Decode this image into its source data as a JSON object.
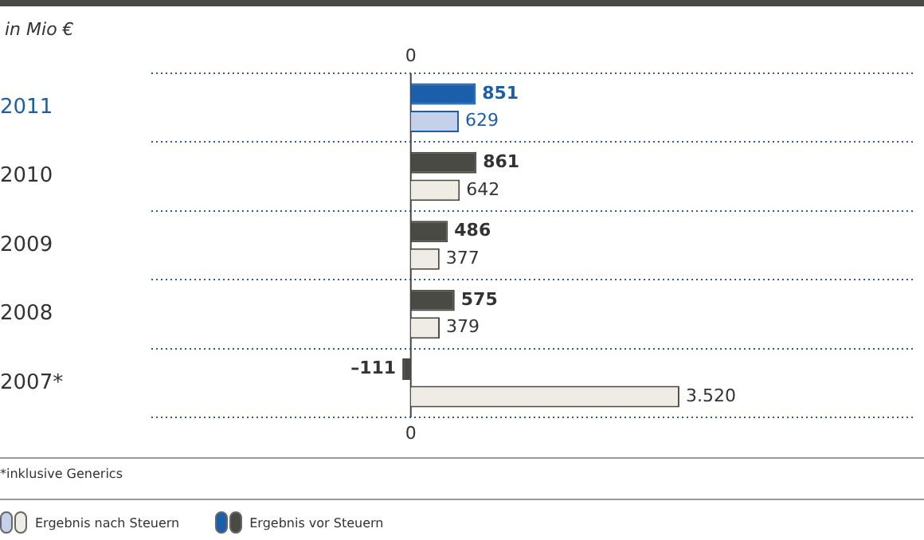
{
  "chart_data": {
    "type": "bar",
    "orientation": "horizontal",
    "title": "in Mio €",
    "categories": [
      "2011",
      "2010",
      "2009",
      "2008",
      "2007*"
    ],
    "series": [
      {
        "name": "Ergebnis vor Steuern",
        "colors": [
          "#1b5faa",
          "#4a4a44",
          "#4a4a44",
          "#4a4a44",
          "#4a4a44"
        ],
        "values": [
          851,
          861,
          486,
          575,
          -111
        ],
        "value_labels": [
          "851",
          "861",
          "486",
          "575",
          "–111"
        ]
      },
      {
        "name": "Ergebnis nach Steuern",
        "colors": [
          "#c5d0ea",
          "#eeece4",
          "#eeece4",
          "#eeece4",
          "#eeece4"
        ],
        "values": [
          629,
          642,
          377,
          379,
          3520
        ],
        "value_labels": [
          "629",
          "642",
          "377",
          "379",
          "3.520"
        ]
      }
    ],
    "xlim": [
      -3400,
      6600
    ],
    "ref_lines": [
      {
        "axis": "x",
        "value": 0,
        "color": "#444444"
      }
    ],
    "grid": "y",
    "legend": "bottom left",
    "annotations": [
      "0",
      "0",
      "*inklusive Generics"
    ]
  }
}
